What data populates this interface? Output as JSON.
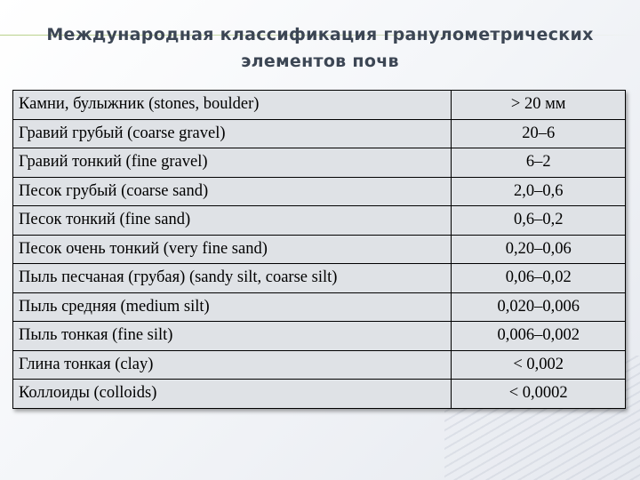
{
  "title": {
    "line1": "Международная классификация гранулометрических",
    "line2": "элементов почв"
  },
  "table": {
    "rows": [
      {
        "name": "Камни, булыжник (stones, boulder)",
        "size": "> 20 мм"
      },
      {
        "name": "Гравий грубый (coarse gravel)",
        "size": "20–6"
      },
      {
        "name": "Гравий тонкий (fine gravel)",
        "size": "6–2"
      },
      {
        "name": "Песок грубый (coarse sand)",
        "size": "2,0–0,6"
      },
      {
        "name": "Песок тонкий (fine sand)",
        "size": "0,6–0,2"
      },
      {
        "name": "Песок очень тонкий (very fine sand)",
        "size": "0,20–0,06"
      },
      {
        "name": "Пыль песчаная (грубая) (sandy silt, coarse silt)",
        "size": "0,06–0,02"
      },
      {
        "name": "Пыль средняя (medium silt)",
        "size": "0,020–0,006"
      },
      {
        "name": "Пыль тонкая (fine silt)",
        "size": "0,006–0,002"
      },
      {
        "name": "Глина тонкая (clay)",
        "size": "< 0,002"
      },
      {
        "name": "Коллоиды (colloids)",
        "size": "< 0,0002"
      }
    ]
  }
}
